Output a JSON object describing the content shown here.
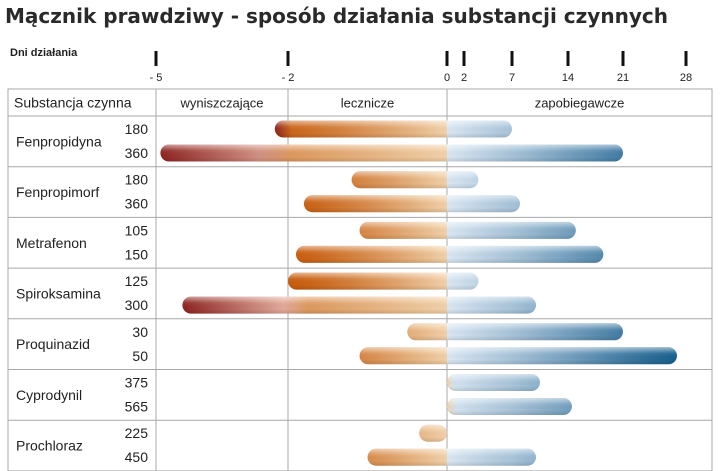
{
  "title": "Mącznik prawdziwy - sposób działania substancji czynnych",
  "chart_data": {
    "type": "bar",
    "orientation": "horizontal",
    "axis": {
      "label": "Dni działania",
      "ticks": [
        -5,
        -2,
        0,
        2,
        7,
        14,
        21,
        28
      ],
      "tick_labels": [
        "- 5",
        "- 2",
        "0",
        "2",
        "7",
        "14",
        "21",
        "28"
      ],
      "xlim": [
        -5.4,
        28.5
      ]
    },
    "header": {
      "substance_col": "Substancja czynna",
      "phases": [
        {
          "name": "wyniszczające",
          "from": -5,
          "to": -2
        },
        {
          "name": "lecznicze",
          "from": -2,
          "to": 0
        },
        {
          "name": "zapobiegawcze",
          "from": 0,
          "to": 28
        }
      ]
    },
    "substances": [
      {
        "name": "Fenpropidyna",
        "rows": [
          {
            "dose": "180",
            "start": -2.3,
            "end": 7
          },
          {
            "dose": "360",
            "start": -4.9,
            "end": 21
          }
        ]
      },
      {
        "name": "Fenpropimorf",
        "rows": [
          {
            "dose": "180",
            "start": -1.2,
            "end": 3.5
          },
          {
            "dose": "360",
            "start": -1.8,
            "end": 8
          }
        ]
      },
      {
        "name": "Metrafenon",
        "rows": [
          {
            "dose": "105",
            "start": -1.1,
            "end": 15
          },
          {
            "dose": "150",
            "start": -1.9,
            "end": 18.5
          }
        ]
      },
      {
        "name": "Spiroksamina",
        "rows": [
          {
            "dose": "125",
            "start": -2,
            "end": 3.5
          },
          {
            "dose": "300",
            "start": -4.4,
            "end": 10
          }
        ]
      },
      {
        "name": "Proquinazid",
        "rows": [
          {
            "dose": "30",
            "start": -0.5,
            "end": 21
          },
          {
            "dose": "50",
            "start": -1.1,
            "end": 27
          }
        ]
      },
      {
        "name": "Cyprodynil",
        "rows": [
          {
            "dose": "375",
            "start": 0,
            "end": 10.5
          },
          {
            "dose": "565",
            "start": 0,
            "end": 14.5
          }
        ]
      },
      {
        "name": "Prochloraz",
        "rows": [
          {
            "dose": "225",
            "start": -0.35,
            "end": 0
          },
          {
            "dose": "450",
            "start": -1,
            "end": 10
          }
        ]
      }
    ],
    "colors": {
      "eradicant_dark": "#8e2420",
      "eradicant_light": "#e6b0a0",
      "curative_dark": "#c85c0c",
      "curative_light": "#f2d2aa",
      "protective_light": "#dbe8f4",
      "protective_dark": "#185f8e",
      "axis_left": "#b8453e",
      "axis_right": "#d49a4a",
      "grid": "#a8a8a8"
    }
  }
}
